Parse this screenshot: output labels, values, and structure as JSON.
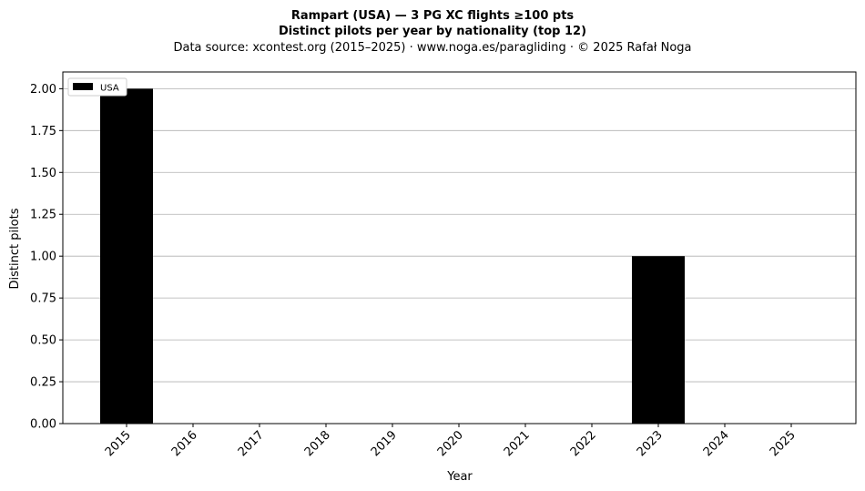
{
  "header": {
    "title_line1": "Rampart (USA)  —  3 PG XC flights ≥100 pts",
    "title_line2": "Distinct pilots per year by nationality (top 12)",
    "subtitle": "Data source: xcontest.org (2015–2025)  ·  www.noga.es/paragliding  ·  © 2025 Rafał Noga"
  },
  "chart_data": {
    "type": "bar",
    "categories": [
      "2015",
      "2016",
      "2017",
      "2018",
      "2019",
      "2020",
      "2021",
      "2022",
      "2023",
      "2024",
      "2025"
    ],
    "series": [
      {
        "name": "USA",
        "values": [
          2,
          0,
          0,
          0,
          0,
          0,
          0,
          0,
          1,
          0,
          0
        ],
        "color": "#000000"
      }
    ],
    "xlabel": "Year",
    "ylabel": "Distinct pilots",
    "ylim": [
      0,
      2.1
    ],
    "yticks": [
      "0.00",
      "0.25",
      "0.50",
      "0.75",
      "1.00",
      "1.25",
      "1.50",
      "1.75",
      "2.00"
    ],
    "grid": "horizontal",
    "legend_position": "top-left"
  },
  "colors": {
    "grid": "#b0b0b0",
    "bar": "#000000",
    "axis": "#000000"
  }
}
